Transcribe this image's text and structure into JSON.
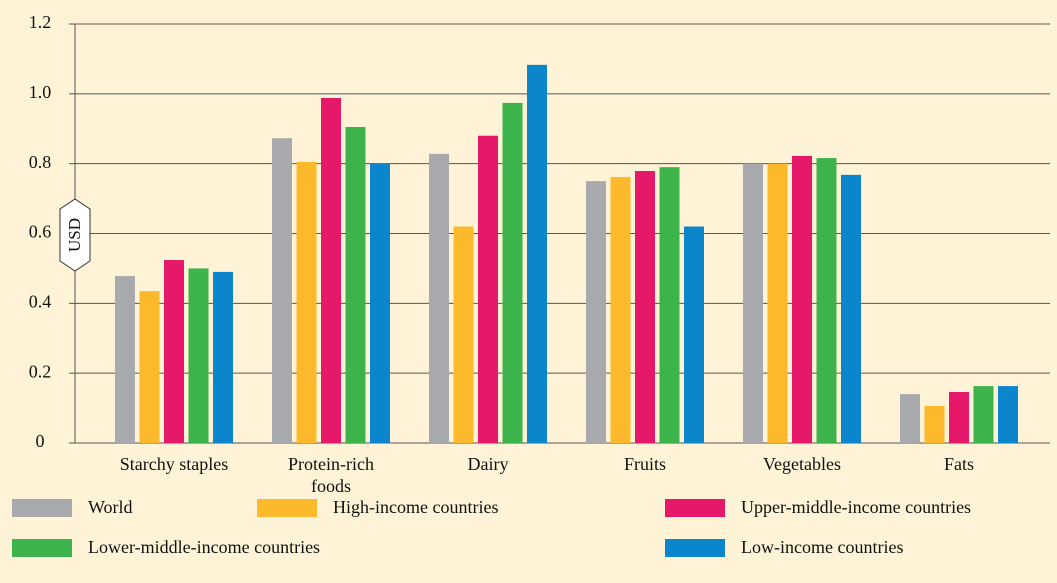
{
  "chart_data": {
    "type": "bar",
    "y_label": "USD",
    "categories": [
      "Starchy staples",
      "Protein-rich foods",
      "Dairy",
      "Fruits",
      "Vegetables",
      "Fats"
    ],
    "series": [
      {
        "name": "World",
        "color": "#a7a9ac",
        "values": [
          0.478,
          0.873,
          0.828,
          0.75,
          0.8,
          0.14
        ]
      },
      {
        "name": "High-income countries",
        "color": "#fdb92c",
        "values": [
          0.435,
          0.805,
          0.62,
          0.762,
          0.8,
          0.106
        ]
      },
      {
        "name": "Upper-middle-income countries",
        "color": "#e5186a",
        "values": [
          0.524,
          0.988,
          0.88,
          0.779,
          0.822,
          0.146
        ]
      },
      {
        "name": "Lower-middle-income countries",
        "color": "#3cb44b",
        "values": [
          0.5,
          0.905,
          0.974,
          0.79,
          0.816,
          0.163
        ]
      },
      {
        "name": "Low-income countries",
        "color": "#0b86cc",
        "values": [
          0.49,
          0.8,
          1.083,
          0.62,
          0.768,
          0.163
        ]
      }
    ],
    "ylim": [
      0,
      1.2
    ],
    "yticks": [
      0,
      0.2,
      0.4,
      0.6,
      0.8,
      {
        "value": 1,
        "label": "1.0"
      },
      1.2
    ],
    "grid": true
  }
}
